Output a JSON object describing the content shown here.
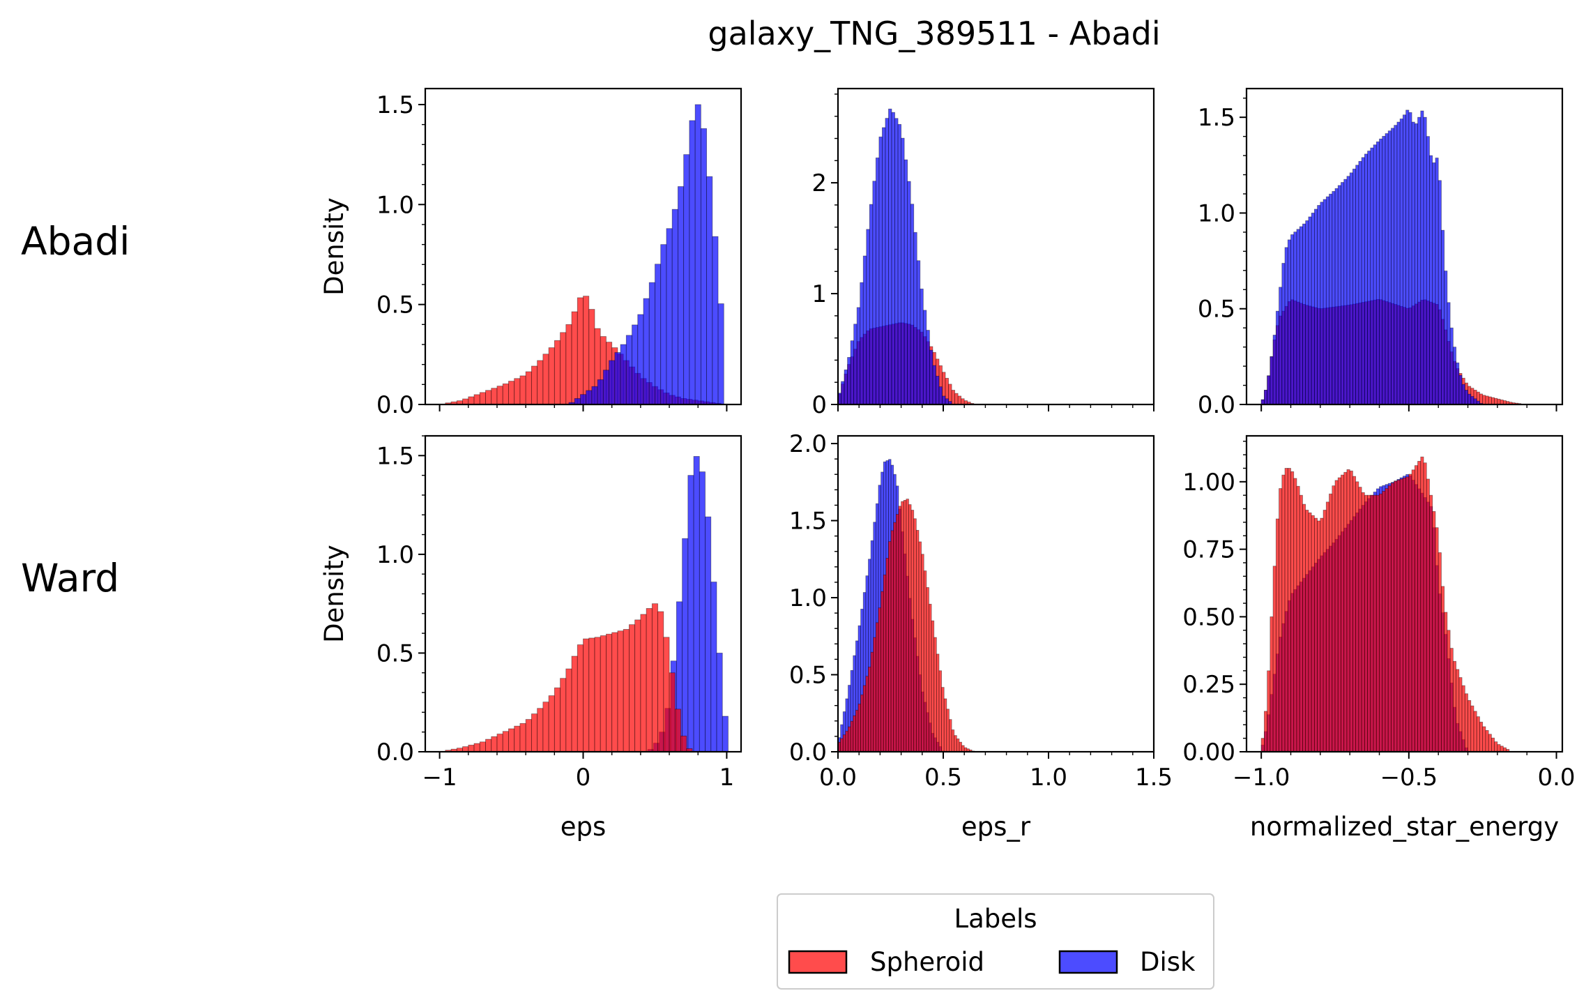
{
  "figure": {
    "title": "galaxy_TNG_389511 - Abadi",
    "row_labels": [
      "Abadi",
      "Ward"
    ]
  },
  "colors": {
    "spheroid": "#ff0000",
    "disk": "#0000ff",
    "overlap_hint": "#b0002a"
  },
  "legend": {
    "title": "Labels",
    "items": [
      {
        "label": "Spheroid",
        "color": "#ff0000"
      },
      {
        "label": "Disk",
        "color": "#0000ff"
      }
    ],
    "placement": "bottom-center"
  },
  "chart_data": [
    {
      "type": "histogram",
      "row": "Abadi",
      "col": 0,
      "xlabel": "",
      "ylabel": "Density",
      "xlim": [
        -1.1,
        1.1
      ],
      "ylim": [
        0,
        1.58
      ],
      "xticks": [
        -1,
        0,
        1
      ],
      "xtick_labels": [
        "",
        "",
        ""
      ],
      "yticks": [
        0,
        0.5,
        1.0,
        1.5
      ],
      "ytick_labels": [
        "0.0",
        "0.5",
        "1.0",
        "1.5"
      ],
      "bin_width": 0.04,
      "series": [
        {
          "name": "Spheroid",
          "x": [
            -1.0,
            -0.85,
            -0.7,
            -0.55,
            -0.4,
            -0.3,
            -0.2,
            -0.1,
            -0.05,
            0.0,
            0.05,
            0.1,
            0.15,
            0.2,
            0.25,
            0.3,
            0.35,
            0.4,
            0.5,
            0.6,
            0.7,
            0.8,
            0.9,
            1.0
          ],
          "y": [
            0.0,
            0.02,
            0.06,
            0.1,
            0.15,
            0.22,
            0.3,
            0.4,
            0.48,
            0.57,
            0.5,
            0.38,
            0.33,
            0.3,
            0.26,
            0.22,
            0.18,
            0.14,
            0.09,
            0.05,
            0.03,
            0.02,
            0.01,
            0.0
          ]
        },
        {
          "name": "Disk",
          "x": [
            -0.1,
            0.0,
            0.1,
            0.2,
            0.3,
            0.4,
            0.45,
            0.5,
            0.55,
            0.6,
            0.65,
            0.7,
            0.75,
            0.8,
            0.85,
            0.9,
            0.95,
            1.0
          ],
          "y": [
            0.0,
            0.05,
            0.1,
            0.22,
            0.32,
            0.45,
            0.55,
            0.65,
            0.78,
            0.88,
            1.0,
            1.15,
            1.4,
            1.5,
            1.35,
            1.0,
            0.6,
            0.12
          ]
        }
      ]
    },
    {
      "type": "histogram",
      "row": "Abadi",
      "col": 1,
      "xlabel": "",
      "ylabel": "",
      "xlim": [
        0,
        1.5
      ],
      "ylim": [
        0,
        2.85
      ],
      "xticks": [
        0,
        0.5,
        1.0,
        1.5
      ],
      "xtick_labels": [
        "",
        "",
        "",
        ""
      ],
      "yticks": [
        0,
        1,
        2
      ],
      "ytick_labels": [
        "0",
        "1",
        "2"
      ],
      "bin_width": 0.015,
      "series": [
        {
          "name": "Spheroid",
          "x": [
            0.0,
            0.05,
            0.1,
            0.15,
            0.2,
            0.25,
            0.3,
            0.35,
            0.4,
            0.45,
            0.5,
            0.55,
            0.6,
            0.65
          ],
          "y": [
            0.05,
            0.35,
            0.58,
            0.68,
            0.7,
            0.72,
            0.74,
            0.72,
            0.65,
            0.5,
            0.3,
            0.12,
            0.04,
            0.0
          ]
        },
        {
          "name": "Disk",
          "x": [
            0.0,
            0.05,
            0.1,
            0.15,
            0.2,
            0.25,
            0.3,
            0.35,
            0.4,
            0.45,
            0.5,
            0.55
          ],
          "y": [
            0.05,
            0.4,
            0.9,
            1.7,
            2.4,
            2.68,
            2.5,
            1.85,
            1.0,
            0.4,
            0.08,
            0.0
          ]
        }
      ]
    },
    {
      "type": "histogram",
      "row": "Abadi",
      "col": 2,
      "xlabel": "",
      "ylabel": "",
      "xlim": [
        -1.05,
        0.02
      ],
      "ylim": [
        0,
        1.65
      ],
      "xticks": [
        -1.0,
        -0.5,
        0.0
      ],
      "xtick_labels": [
        "",
        "",
        ""
      ],
      "yticks": [
        0,
        0.5,
        1.0,
        1.5
      ],
      "ytick_labels": [
        "0.0",
        "0.5",
        "1.0",
        "1.5"
      ],
      "bin_width": 0.01,
      "series": [
        {
          "name": "Spheroid",
          "x": [
            -1.0,
            -0.98,
            -0.96,
            -0.94,
            -0.9,
            -0.85,
            -0.8,
            -0.7,
            -0.6,
            -0.5,
            -0.45,
            -0.4,
            -0.38,
            -0.36,
            -0.34,
            -0.32,
            -0.3,
            -0.25,
            -0.2,
            -0.15,
            -0.1
          ],
          "y": [
            0.0,
            0.1,
            0.3,
            0.45,
            0.55,
            0.52,
            0.5,
            0.52,
            0.55,
            0.5,
            0.55,
            0.52,
            0.42,
            0.3,
            0.2,
            0.15,
            0.1,
            0.05,
            0.03,
            0.01,
            0.0
          ]
        },
        {
          "name": "Disk",
          "x": [
            -1.0,
            -0.98,
            -0.96,
            -0.94,
            -0.92,
            -0.9,
            -0.85,
            -0.8,
            -0.75,
            -0.7,
            -0.65,
            -0.6,
            -0.55,
            -0.52,
            -0.5,
            -0.48,
            -0.45,
            -0.42,
            -0.4,
            -0.38,
            -0.36,
            -0.34,
            -0.32,
            -0.3,
            -0.25
          ],
          "y": [
            0.0,
            0.1,
            0.3,
            0.55,
            0.8,
            0.88,
            0.95,
            1.05,
            1.12,
            1.2,
            1.3,
            1.38,
            1.45,
            1.5,
            1.55,
            1.45,
            1.55,
            1.25,
            1.3,
            0.78,
            0.45,
            0.25,
            0.12,
            0.06,
            0.0
          ]
        }
      ]
    },
    {
      "type": "histogram",
      "row": "Ward",
      "col": 0,
      "xlabel": "eps",
      "ylabel": "Density",
      "xlim": [
        -1.1,
        1.1
      ],
      "ylim": [
        0,
        1.6
      ],
      "xticks": [
        -1,
        0,
        1
      ],
      "xtick_labels": [
        "−1",
        "0",
        "1"
      ],
      "yticks": [
        0,
        0.5,
        1.0,
        1.5
      ],
      "ytick_labels": [
        "0.0",
        "0.5",
        "1.0",
        "1.5"
      ],
      "bin_width": 0.04,
      "series": [
        {
          "name": "Spheroid",
          "x": [
            -1.0,
            -0.85,
            -0.7,
            -0.55,
            -0.4,
            -0.3,
            -0.2,
            -0.1,
            -0.05,
            0.0,
            0.1,
            0.2,
            0.3,
            0.4,
            0.45,
            0.5,
            0.55,
            0.6,
            0.65,
            0.7,
            0.75
          ],
          "y": [
            0.0,
            0.02,
            0.05,
            0.1,
            0.15,
            0.22,
            0.3,
            0.42,
            0.5,
            0.57,
            0.58,
            0.6,
            0.62,
            0.68,
            0.72,
            0.75,
            0.7,
            0.5,
            0.25,
            0.08,
            0.0
          ]
        },
        {
          "name": "Disk",
          "x": [
            0.45,
            0.5,
            0.55,
            0.6,
            0.65,
            0.7,
            0.75,
            0.8,
            0.85,
            0.9,
            0.95,
            1.0
          ],
          "y": [
            0.0,
            0.03,
            0.1,
            0.25,
            0.6,
            1.0,
            1.4,
            1.52,
            1.35,
            0.95,
            0.5,
            0.1
          ]
        }
      ]
    },
    {
      "type": "histogram",
      "row": "Ward",
      "col": 1,
      "xlabel": "eps_r",
      "ylabel": "",
      "xlim": [
        0,
        1.5
      ],
      "ylim": [
        0,
        2.05
      ],
      "xticks": [
        0,
        0.5,
        1.0,
        1.5
      ],
      "xtick_labels": [
        "0.0",
        "0.5",
        "1.0",
        "1.5"
      ],
      "yticks": [
        0,
        0.5,
        1.0,
        1.5,
        2.0
      ],
      "ytick_labels": [
        "0.0",
        "0.5",
        "1.0",
        "1.5",
        "2.0"
      ],
      "bin_width": 0.012,
      "series": [
        {
          "name": "Spheroid",
          "x": [
            0.0,
            0.05,
            0.1,
            0.15,
            0.2,
            0.25,
            0.3,
            0.33,
            0.36,
            0.4,
            0.45,
            0.5,
            0.55,
            0.6,
            0.65
          ],
          "y": [
            0.05,
            0.15,
            0.3,
            0.55,
            0.95,
            1.4,
            1.62,
            1.64,
            1.55,
            1.3,
            0.85,
            0.4,
            0.12,
            0.03,
            0.0
          ]
        },
        {
          "name": "Disk",
          "x": [
            0.0,
            0.05,
            0.1,
            0.15,
            0.2,
            0.22,
            0.25,
            0.28,
            0.3,
            0.35,
            0.4,
            0.45,
            0.5
          ],
          "y": [
            0.05,
            0.4,
            0.8,
            1.25,
            1.75,
            1.88,
            1.9,
            1.75,
            1.5,
            0.9,
            0.4,
            0.12,
            0.0
          ]
        }
      ]
    },
    {
      "type": "histogram",
      "row": "Ward",
      "col": 2,
      "xlabel": "normalized_star_energy",
      "ylabel": "",
      "xlim": [
        -1.05,
        0.02
      ],
      "ylim": [
        0,
        1.17
      ],
      "xticks": [
        -1.0,
        -0.5,
        0.0
      ],
      "xtick_labels": [
        "−1.0",
        "−0.5",
        "0.0"
      ],
      "yticks": [
        0,
        0.25,
        0.5,
        0.75,
        1.0
      ],
      "ytick_labels": [
        "0.00",
        "0.25",
        "0.50",
        "0.75",
        "1.00"
      ],
      "bin_width": 0.01,
      "series": [
        {
          "name": "Spheroid",
          "x": [
            -1.0,
            -0.98,
            -0.96,
            -0.94,
            -0.92,
            -0.9,
            -0.88,
            -0.85,
            -0.8,
            -0.75,
            -0.7,
            -0.65,
            -0.6,
            -0.55,
            -0.5,
            -0.45,
            -0.4,
            -0.38,
            -0.35,
            -0.3,
            -0.25,
            -0.2,
            -0.15
          ],
          "y": [
            0.0,
            0.2,
            0.6,
            0.95,
            1.05,
            1.05,
            1.0,
            0.9,
            0.85,
            1.0,
            1.05,
            0.95,
            0.95,
            1.0,
            1.02,
            1.1,
            0.8,
            0.55,
            0.35,
            0.2,
            0.1,
            0.03,
            0.0
          ]
        },
        {
          "name": "Disk",
          "x": [
            -1.0,
            -0.98,
            -0.96,
            -0.94,
            -0.92,
            -0.9,
            -0.85,
            -0.8,
            -0.75,
            -0.7,
            -0.65,
            -0.6,
            -0.55,
            -0.5,
            -0.45,
            -0.42,
            -0.4,
            -0.38,
            -0.36,
            -0.34,
            -0.3
          ],
          "y": [
            0.0,
            0.1,
            0.25,
            0.4,
            0.5,
            0.58,
            0.65,
            0.72,
            0.78,
            0.85,
            0.92,
            0.98,
            1.0,
            1.03,
            0.95,
            0.9,
            0.62,
            0.48,
            0.3,
            0.12,
            0.0
          ]
        }
      ]
    }
  ]
}
